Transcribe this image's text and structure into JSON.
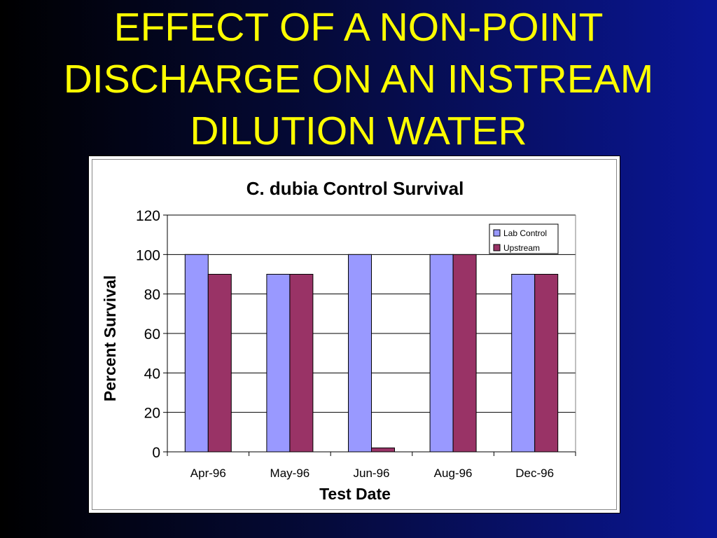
{
  "slide": {
    "title_lines": [
      "EFFECT OF A NON-POINT",
      "DISCHARGE ON AN INSTREAM",
      "DILUTION WATER"
    ]
  },
  "chart_data": {
    "type": "bar",
    "title": "C. dubia Control Survival",
    "xlabel": "Test Date",
    "ylabel": "Percent Survival",
    "categories": [
      "Apr-96",
      "May-96",
      "Jun-96",
      "Aug-96",
      "Dec-96"
    ],
    "series": [
      {
        "name": "Lab Control",
        "values": [
          100,
          90,
          100,
          100,
          90
        ],
        "color": "#9999ff"
      },
      {
        "name": "Upstream",
        "values": [
          90,
          90,
          2,
          100,
          90
        ],
        "color": "#993366"
      }
    ],
    "ylim": [
      0,
      120
    ],
    "yticks": [
      0,
      20,
      40,
      60,
      80,
      100,
      120
    ],
    "grid": true,
    "legend": "top-right"
  }
}
